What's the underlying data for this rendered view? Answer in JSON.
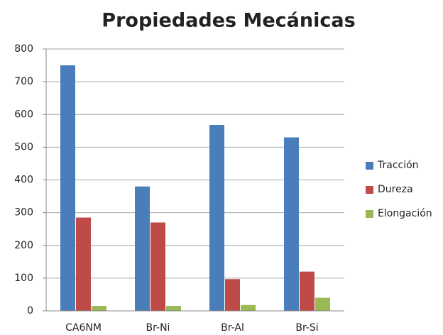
{
  "chart_data": {
    "type": "bar",
    "title": "Propiedades Mecánicas",
    "categories": [
      "CA6NM",
      "Br-Ni",
      "Br-Al",
      "Br-Si"
    ],
    "series": [
      {
        "name": "Tracción",
        "color": "#4a7ebb",
        "values": [
          750,
          380,
          568,
          530
        ]
      },
      {
        "name": "Dureza",
        "color": "#be4b48",
        "values": [
          285,
          270,
          97,
          120
        ]
      },
      {
        "name": "Elongación",
        "color": "#98b954",
        "values": [
          15,
          15,
          18,
          40
        ]
      }
    ],
    "ylim": [
      0,
      800
    ],
    "yticks": [
      0,
      100,
      200,
      300,
      400,
      500,
      600,
      700,
      800
    ],
    "grid": true,
    "legend": "right"
  }
}
